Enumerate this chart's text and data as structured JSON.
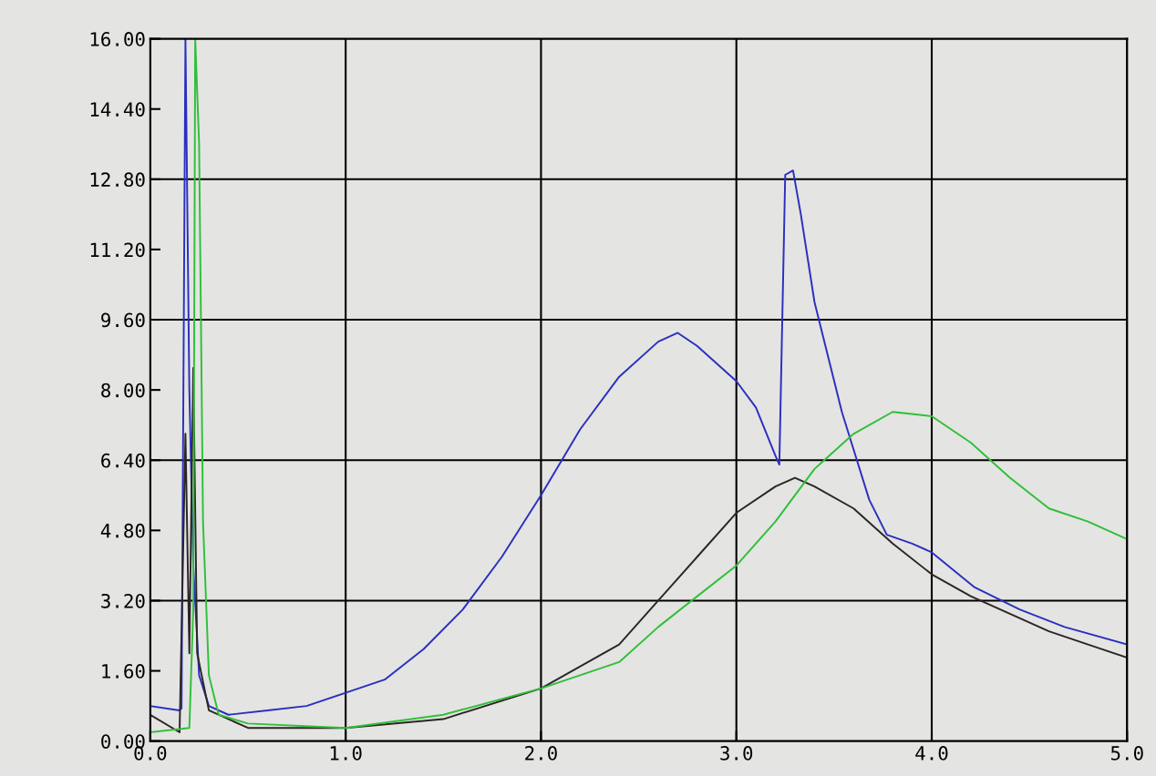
{
  "chart_data": {
    "type": "line",
    "xlim": [
      0,
      5
    ],
    "ylim": [
      0,
      16
    ],
    "xticks": [
      {
        "value": 0,
        "label": "0.0"
      },
      {
        "value": 1,
        "label": "1.0"
      },
      {
        "value": 2,
        "label": "2.0"
      },
      {
        "value": 3,
        "label": "3.0"
      },
      {
        "value": 4,
        "label": "4.0"
      },
      {
        "value": 5,
        "label": "5.0"
      }
    ],
    "yticks": [
      {
        "value": 0,
        "label": "0.00"
      },
      {
        "value": 1.6,
        "label": "1.60"
      },
      {
        "value": 3.2,
        "label": "3.20"
      },
      {
        "value": 4.8,
        "label": "4.80"
      },
      {
        "value": 6.4,
        "label": "6.40"
      },
      {
        "value": 8.0,
        "label": "8.00"
      },
      {
        "value": 9.6,
        "label": "9.60"
      },
      {
        "value": 11.2,
        "label": "11.20"
      },
      {
        "value": 12.8,
        "label": "12.80"
      },
      {
        "value": 14.4,
        "label": "14.40"
      },
      {
        "value": 16,
        "label": "16.00"
      }
    ],
    "grid": "x",
    "legend": false,
    "marker": "none",
    "line_style": "solid",
    "ref_lines": [
      {
        "axis": "y",
        "value": 3.2,
        "color": "#000000"
      },
      {
        "axis": "y",
        "value": 6.4,
        "color": "#000000"
      },
      {
        "axis": "y",
        "value": 9.6,
        "color": "#000000"
      },
      {
        "axis": "y",
        "value": 12.8,
        "color": "#000000"
      }
    ],
    "series": [
      {
        "color": "#2a2fc0",
        "x": [
          0,
          0.15,
          0.16,
          0.18,
          0.2,
          0.22,
          0.25,
          0.3,
          0.4,
          0.6,
          0.8,
          1.0,
          1.2,
          1.4,
          1.6,
          1.8,
          2.0,
          2.2,
          2.4,
          2.6,
          2.7,
          2.8,
          3.0,
          3.1,
          3.2,
          3.22,
          3.25,
          3.29,
          3.33,
          3.4,
          3.54,
          3.68,
          3.77,
          3.9,
          4.0,
          4.22,
          4.45,
          4.68,
          5.0
        ],
        "values": [
          0.8,
          0.7,
          0.75,
          16,
          8,
          4,
          1.5,
          0.8,
          0.6,
          0.7,
          0.8,
          1.1,
          1.4,
          2.1,
          3.0,
          4.2,
          5.6,
          7.1,
          8.3,
          9.1,
          9.3,
          9.0,
          8.2,
          7.6,
          6.5,
          6.3,
          12.9,
          13.0,
          12.0,
          10.0,
          7.5,
          5.5,
          4.7,
          4.5,
          4.3,
          3.5,
          3.0,
          2.6,
          2.2
        ]
      },
      {
        "color": "#2b2626",
        "x": [
          0,
          0.15,
          0.18,
          0.2,
          0.22,
          0.24,
          0.3,
          0.5,
          1.0,
          1.5,
          2.0,
          2.4,
          2.6,
          2.8,
          3.0,
          3.2,
          3.3,
          3.4,
          3.6,
          3.8,
          4.0,
          4.2,
          4.4,
          4.6,
          4.8,
          5.0
        ],
        "values": [
          0.6,
          0.2,
          7.0,
          2,
          8.5,
          2,
          0.7,
          0.3,
          0.3,
          0.5,
          1.2,
          2.2,
          3.2,
          4.2,
          5.2,
          5.8,
          6.0,
          5.8,
          5.3,
          4.5,
          3.8,
          3.3,
          2.9,
          2.5,
          2.2,
          1.9
        ]
      },
      {
        "color": "#2fbf3a",
        "x": [
          0,
          0.2,
          0.22,
          0.23,
          0.25,
          0.27,
          0.3,
          0.35,
          0.5,
          1.0,
          1.5,
          2.0,
          2.4,
          2.6,
          2.8,
          3.0,
          3.2,
          3.4,
          3.6,
          3.8,
          4.0,
          4.2,
          4.4,
          4.6,
          4.8,
          5.0
        ],
        "values": [
          0.2,
          0.3,
          3,
          16,
          13.6,
          5,
          1.5,
          0.6,
          0.4,
          0.3,
          0.6,
          1.2,
          1.8,
          2.6,
          3.3,
          4.0,
          5.0,
          6.2,
          7.0,
          7.5,
          7.4,
          6.8,
          6.0,
          5.3,
          5.0,
          4.6
        ]
      }
    ]
  }
}
